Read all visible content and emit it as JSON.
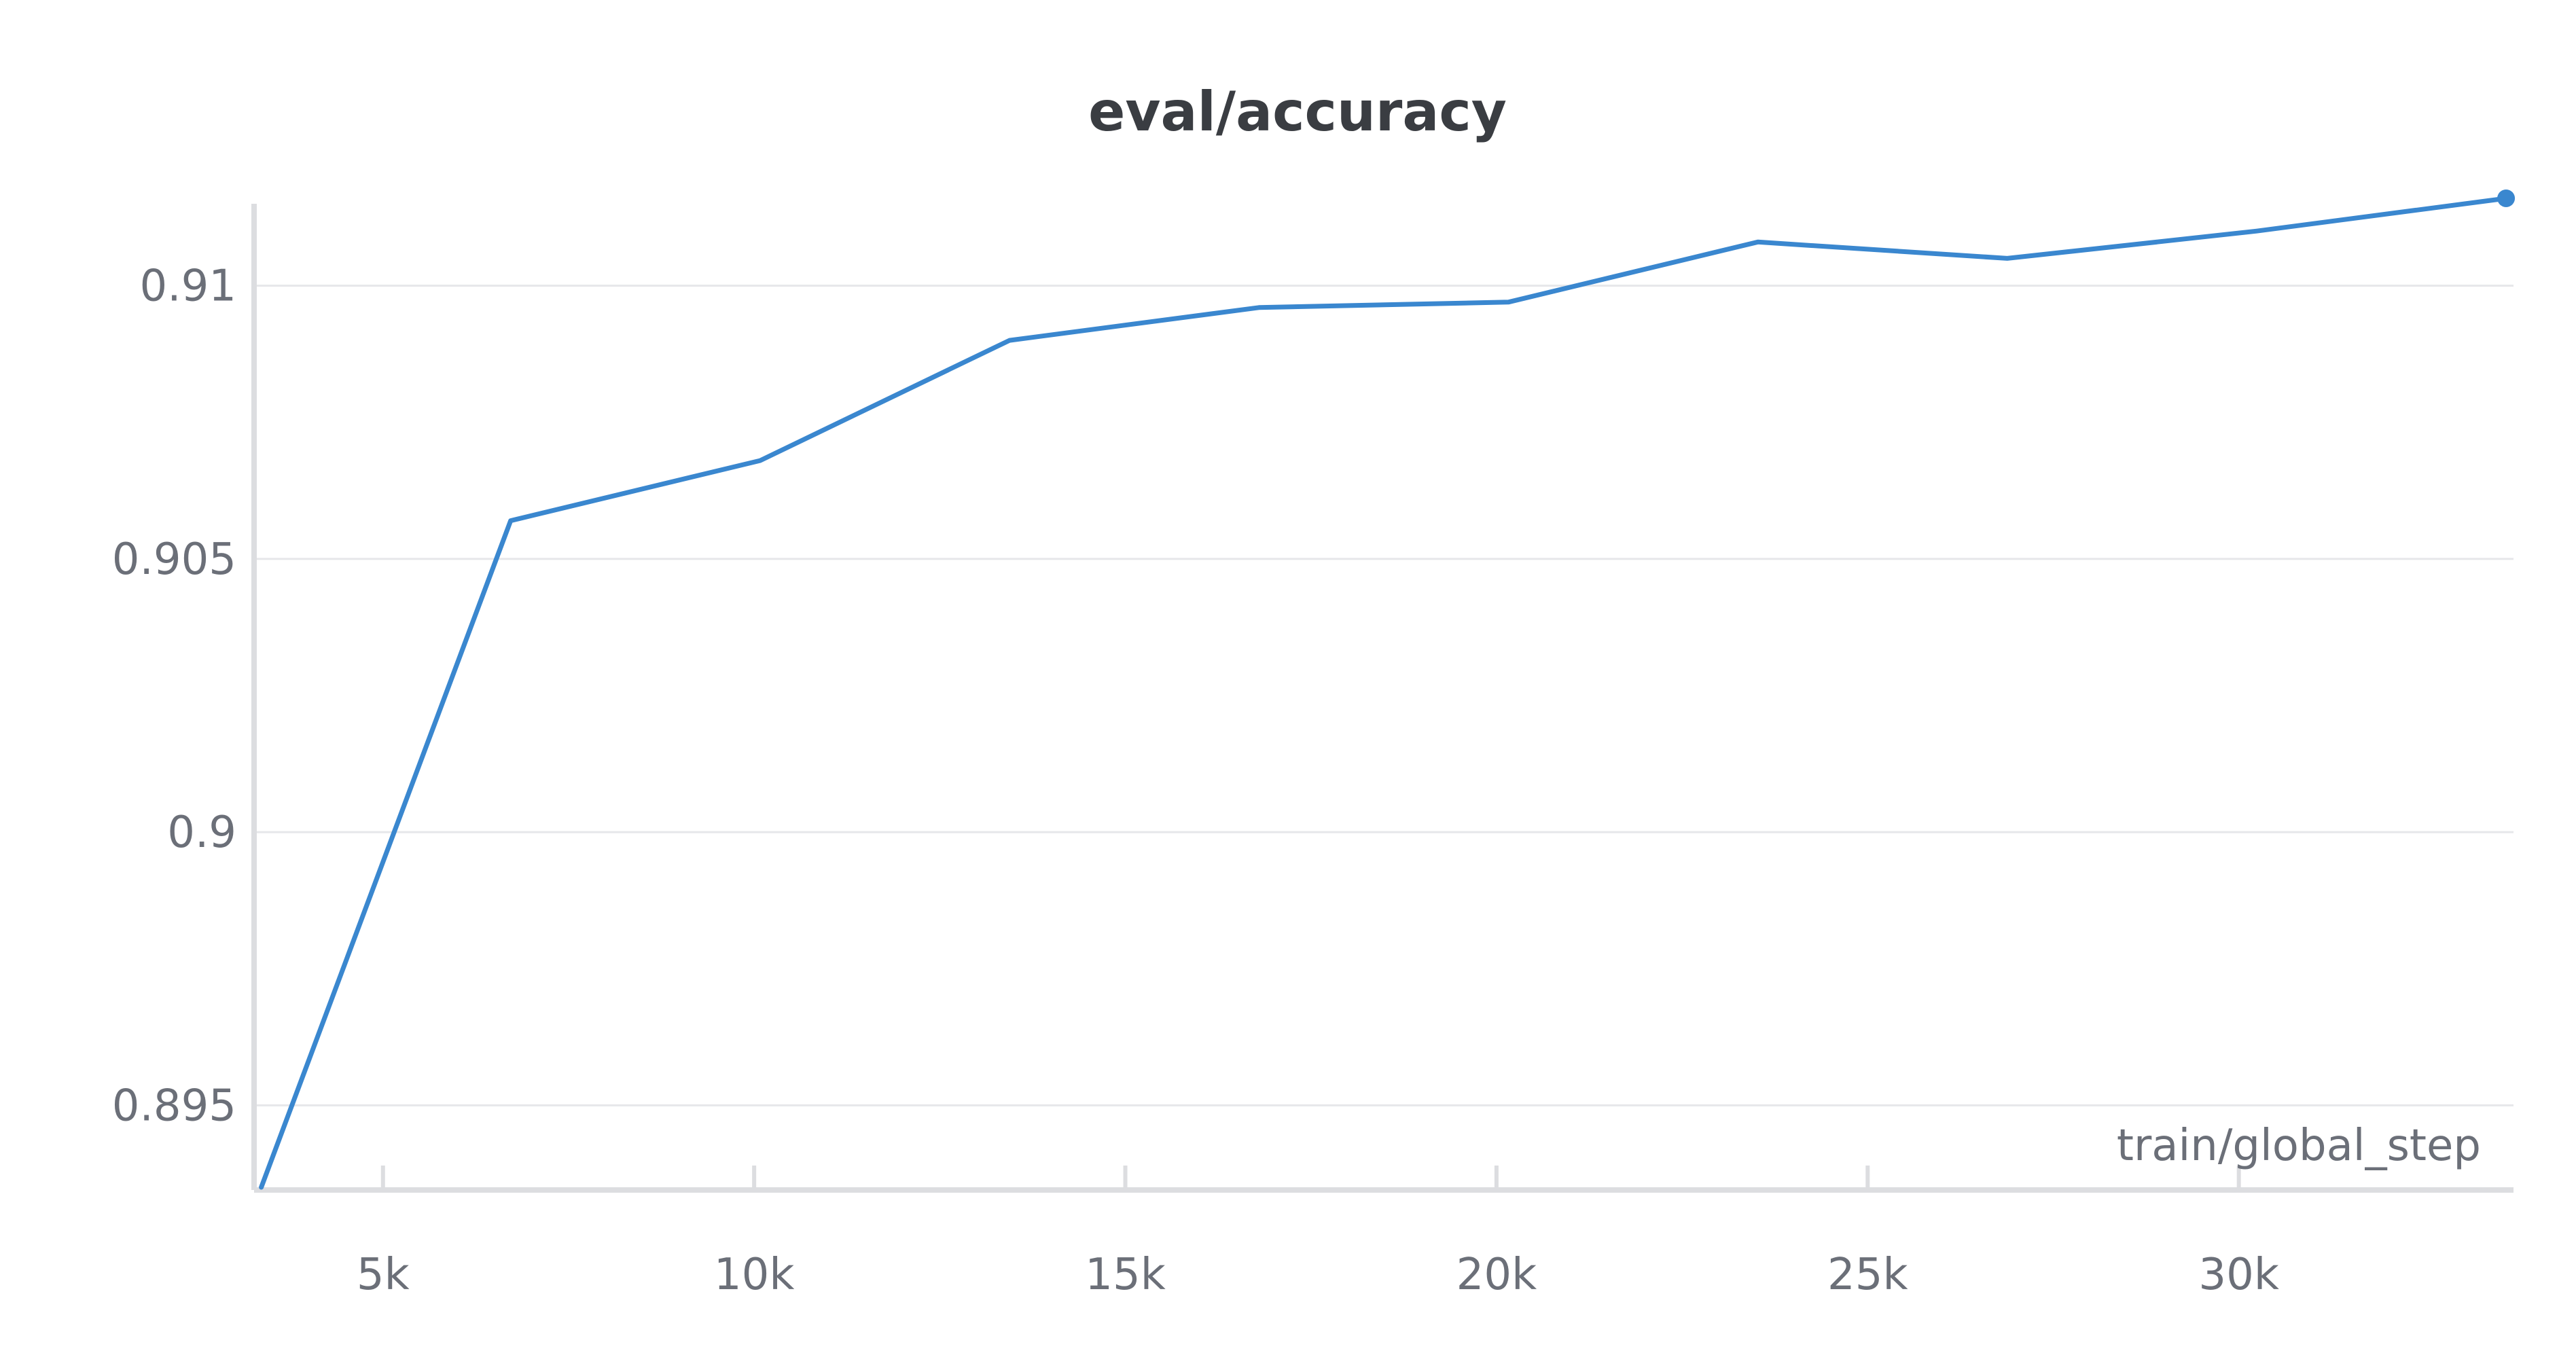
{
  "chart_data": {
    "type": "line",
    "title": "eval/accuracy",
    "xlabel": "train/global_step",
    "ylabel": "",
    "xlim": [
      3300,
      33700
    ],
    "ylim": [
      0.8935,
      0.9115
    ],
    "x_ticks": [
      5000,
      10000,
      15000,
      20000,
      25000,
      30000
    ],
    "x_tick_labels": [
      "5k",
      "10k",
      "15k",
      "20k",
      "25k",
      "30k"
    ],
    "y_ticks": [
      0.895,
      0.9,
      0.905,
      0.91
    ],
    "y_tick_labels": [
      "0.895",
      "0.9",
      "0.905",
      "0.91"
    ],
    "grid": true,
    "series": [
      {
        "color": "#3a87cf",
        "x": [
          3360,
          6720,
          10080,
          13440,
          16800,
          20160,
          23520,
          26880,
          30240,
          33600
        ],
        "y": [
          0.8935,
          0.9057,
          0.9068,
          0.909,
          0.9096,
          0.9097,
          0.9108,
          0.9105,
          0.911,
          0.9116
        ]
      }
    ]
  }
}
